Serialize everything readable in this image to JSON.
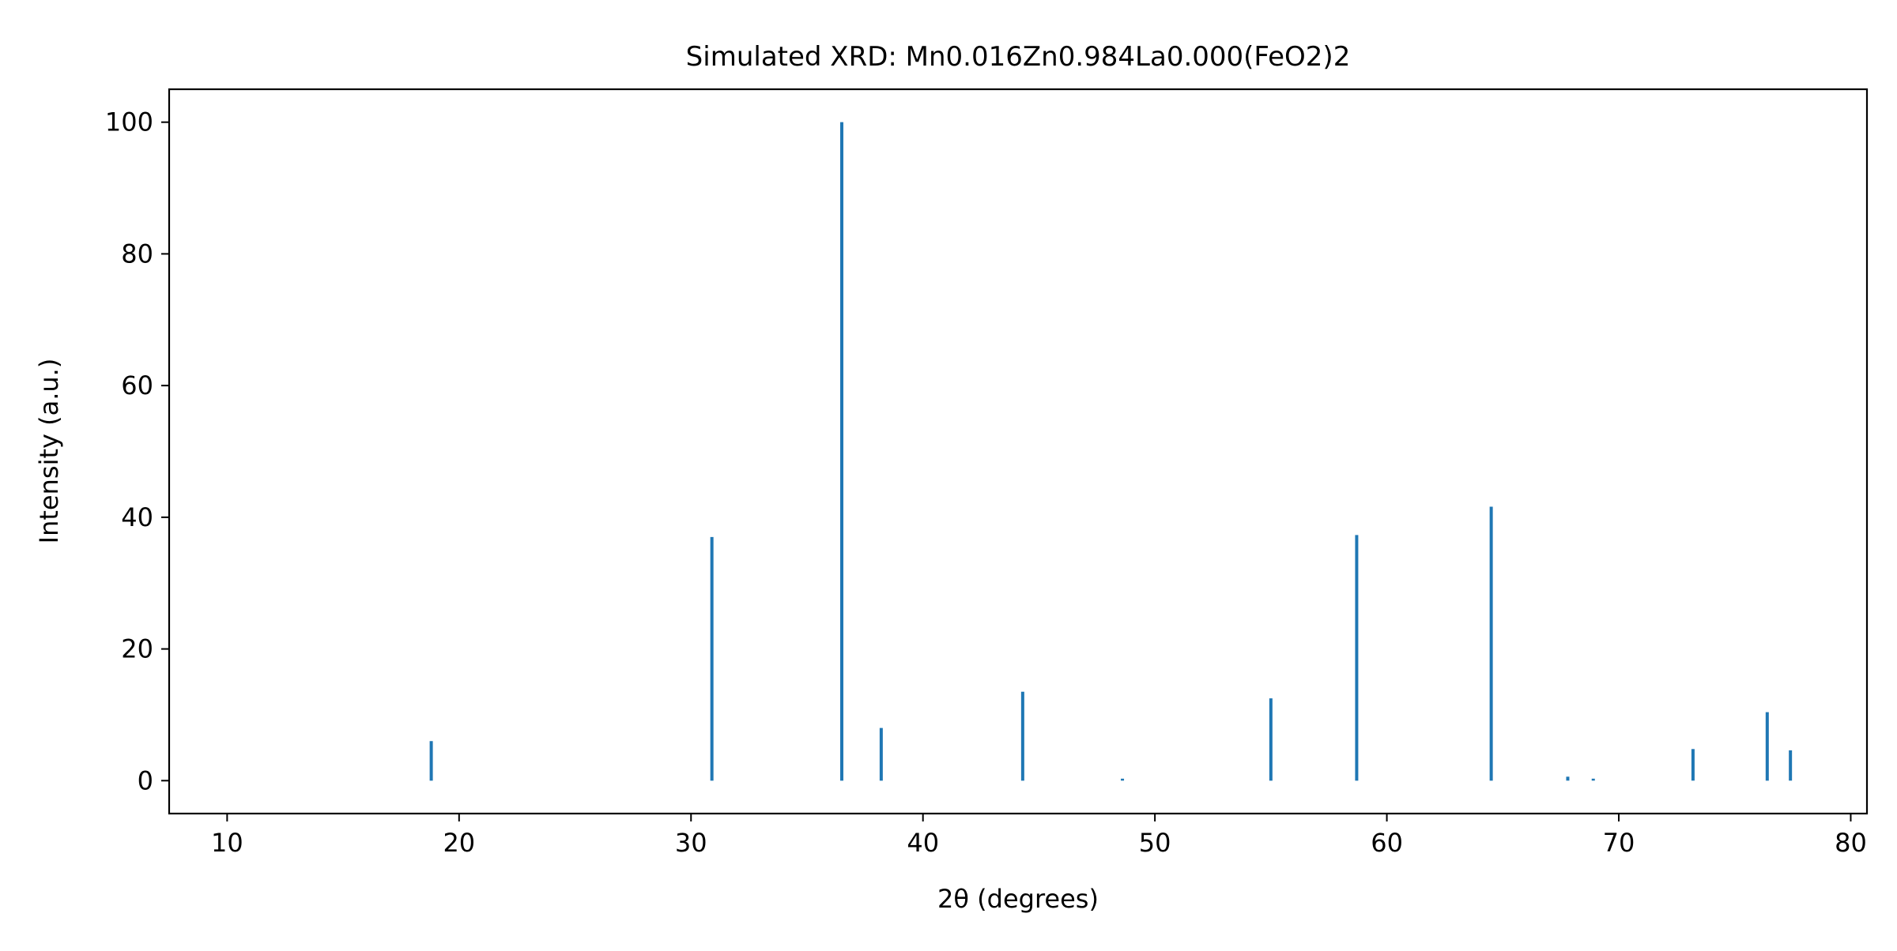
{
  "chart_data": {
    "type": "bar",
    "title": "Simulated XRD: Mn0.016Zn0.984La0.000(FeO2)2",
    "xlabel": "2θ (degrees)",
    "ylabel": "Intensity (a.u.)",
    "xlim": [
      7.5,
      80.7
    ],
    "ylim": [
      -5,
      105
    ],
    "xticks": [
      10,
      20,
      30,
      40,
      50,
      60,
      70,
      80
    ],
    "yticks": [
      0,
      20,
      40,
      60,
      80,
      100
    ],
    "grid": false,
    "color": "#1f77b4",
    "series": [
      {
        "x": [
          18.8,
          30.9,
          36.5,
          38.2,
          44.3,
          48.6,
          55.0,
          58.7,
          64.5,
          67.8,
          68.9,
          73.2,
          76.4,
          77.4
        ],
        "y": [
          6.0,
          37.0,
          100.0,
          8.0,
          13.5,
          0.3,
          12.5,
          37.3,
          41.6,
          0.6,
          0.3,
          4.8,
          10.4,
          4.6
        ]
      }
    ]
  }
}
